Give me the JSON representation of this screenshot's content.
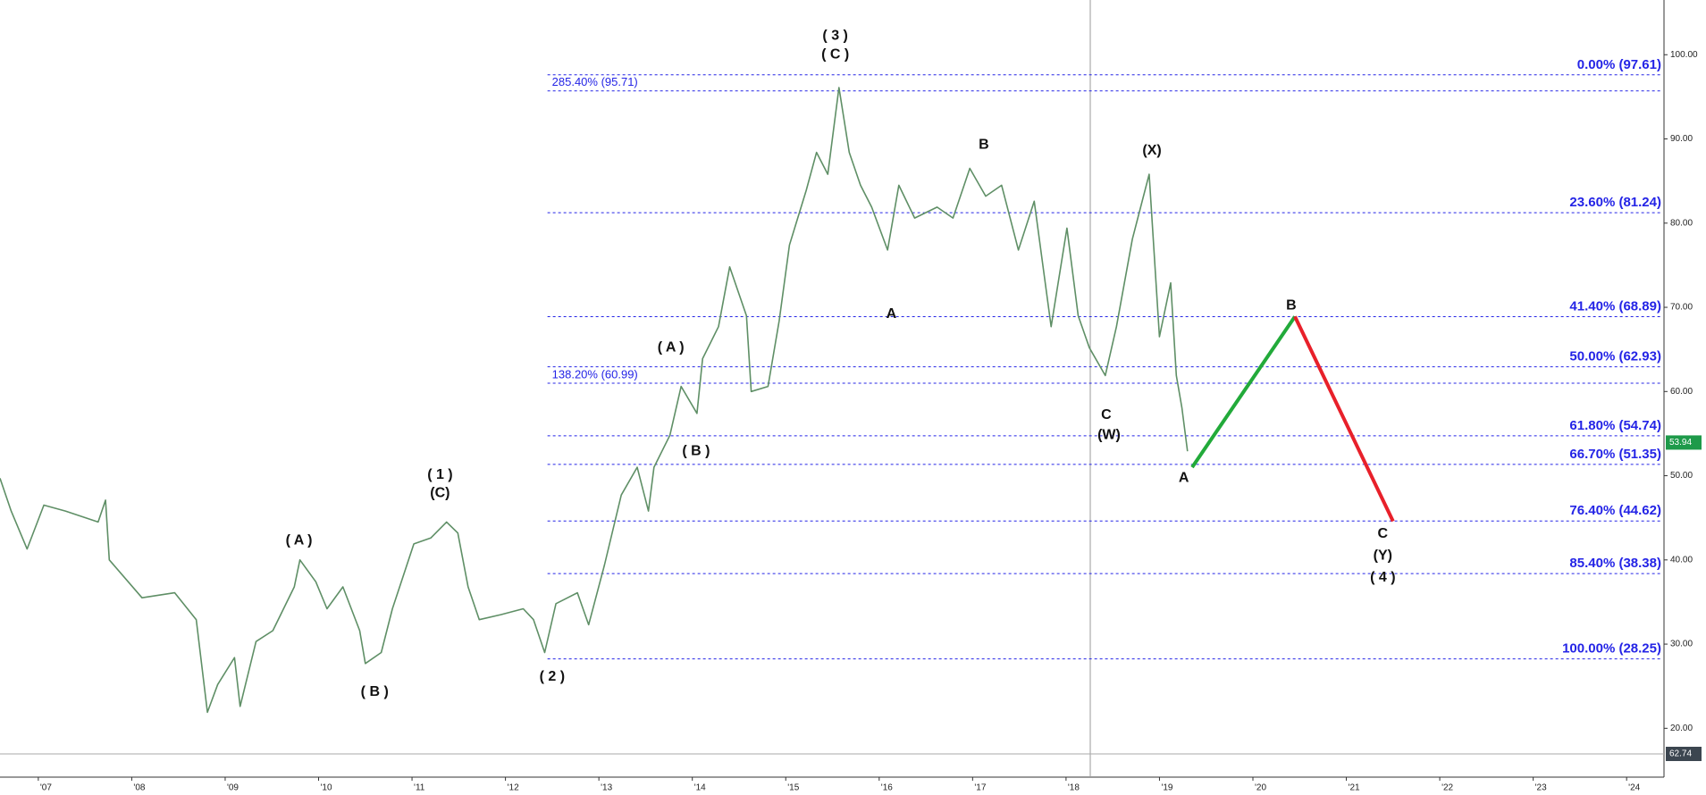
{
  "chart_data": {
    "type": "line",
    "xlim": [
      2006.59,
      2024.4
    ],
    "ylim": [
      14.2,
      106.5
    ],
    "xticks": [
      {
        "value": 2007,
        "label": "'07"
      },
      {
        "value": 2008,
        "label": "'08"
      },
      {
        "value": 2009,
        "label": "'09"
      },
      {
        "value": 2010,
        "label": "'10"
      },
      {
        "value": 2011,
        "label": "'11"
      },
      {
        "value": 2012,
        "label": "'12"
      },
      {
        "value": 2013,
        "label": "'13"
      },
      {
        "value": 2014,
        "label": "'14"
      },
      {
        "value": 2015,
        "label": "'15"
      },
      {
        "value": 2016,
        "label": "'16"
      },
      {
        "value": 2017,
        "label": "'17"
      },
      {
        "value": 2018,
        "label": "'18"
      },
      {
        "value": 2019,
        "label": "'19"
      },
      {
        "value": 2020,
        "label": "'20"
      },
      {
        "value": 2021,
        "label": "'21"
      },
      {
        "value": 2022,
        "label": "'22"
      },
      {
        "value": 2023,
        "label": "'23"
      },
      {
        "value": 2024,
        "label": "'24"
      }
    ],
    "yticks": [
      {
        "value": 20,
        "label": "20.00"
      },
      {
        "value": 30,
        "label": "30.00"
      },
      {
        "value": 40,
        "label": "40.00"
      },
      {
        "value": 50,
        "label": "50.00"
      },
      {
        "value": 60,
        "label": "60.00"
      },
      {
        "value": 70,
        "label": "70.00"
      },
      {
        "value": 80,
        "label": "80.00"
      },
      {
        "value": 90,
        "label": "90.00"
      },
      {
        "value": 100,
        "label": "100.00"
      }
    ],
    "series": [
      {
        "color": "#5f8f66",
        "x": [
          2006.59,
          2006.71,
          2006.88,
          2007.06,
          2007.29,
          2007.64,
          2007.72,
          2007.76,
          2008.11,
          2008.46,
          2008.69,
          2008.81,
          2008.92,
          2009.1,
          2009.16,
          2009.33,
          2009.51,
          2009.74,
          2009.8,
          2009.97,
          2010.09,
          2010.26,
          2010.44,
          2010.5,
          2010.67,
          2010.79,
          2011.02,
          2011.2,
          2011.37,
          2011.49,
          2011.6,
          2011.72,
          2011.95,
          2012.19,
          2012.3,
          2012.42,
          2012.54,
          2012.77,
          2012.89,
          2013.06,
          2013.24,
          2013.41,
          2013.53,
          2013.59,
          2013.76,
          2013.88,
          2014.05,
          2014.11,
          2014.28,
          2014.4,
          2014.58,
          2014.63,
          2014.81,
          2014.93,
          2015.04,
          2015.22,
          2015.33,
          2015.45,
          2015.51,
          2015.57,
          2015.68,
          2015.8,
          2015.92,
          2016.09,
          2016.21,
          2016.38,
          2016.62,
          2016.79,
          2016.97,
          2017.14,
          2017.31,
          2017.49,
          2017.66,
          2017.84,
          2018.01,
          2018.13,
          2018.25,
          2018.42,
          2018.54,
          2018.71,
          2018.89,
          2019.0,
          2019.12,
          2019.18,
          2019.24,
          2019.3
        ],
        "values": [
          49.7,
          45.8,
          41.3,
          46.5,
          45.8,
          44.5,
          47.1,
          40.0,
          35.5,
          36.1,
          32.9,
          21.9,
          25.2,
          28.4,
          22.6,
          30.3,
          31.6,
          36.8,
          40.0,
          37.4,
          34.2,
          36.8,
          31.6,
          27.7,
          29.0,
          34.2,
          41.9,
          42.6,
          44.5,
          43.2,
          36.8,
          32.9,
          33.5,
          34.2,
          32.9,
          29.0,
          34.8,
          36.1,
          32.3,
          39.4,
          47.7,
          51.0,
          45.8,
          51.0,
          54.8,
          60.6,
          57.4,
          63.9,
          67.7,
          74.8,
          69.0,
          60.0,
          60.6,
          68.4,
          77.4,
          83.9,
          88.4,
          85.8,
          91.0,
          96.1,
          88.4,
          84.5,
          81.9,
          76.8,
          84.5,
          80.6,
          81.9,
          80.6,
          86.5,
          83.2,
          84.5,
          76.8,
          82.6,
          67.7,
          79.4,
          69.0,
          65.2,
          61.9,
          67.7,
          78.1,
          85.8,
          66.5,
          72.9,
          61.9,
          58.1,
          52.9
        ]
      }
    ],
    "projection": [
      {
        "color": "#22aa3a",
        "x": [
          2019.35,
          2020.45
        ],
        "values": [
          51.0,
          68.9
        ]
      },
      {
        "color": "#e8202a",
        "x": [
          2020.45,
          2021.5
        ],
        "values": [
          68.9,
          44.6
        ]
      }
    ],
    "fib_start": 2012.45,
    "fib_color": "#2424e6",
    "fib_levels": [
      {
        "label": "0.00% (97.61)",
        "value": 97.61
      },
      {
        "label": "23.60% (81.24)",
        "value": 81.24
      },
      {
        "label": "41.40% (68.89)",
        "value": 68.89
      },
      {
        "label": "50.00% (62.93)",
        "value": 62.93
      },
      {
        "label": "61.80% (54.74)",
        "value": 54.74
      },
      {
        "label": "66.70% (51.35)",
        "value": 51.35
      },
      {
        "label": "76.40% (44.62)",
        "value": 44.62
      },
      {
        "label": "85.40% (38.38)",
        "value": 38.38
      },
      {
        "label": "100.00% (28.25)",
        "value": 28.25
      }
    ],
    "fib_extensions": [
      {
        "label": "285.40% (95.71)",
        "value": 95.71
      },
      {
        "label": "138.20% (60.99)",
        "value": 60.99
      }
    ],
    "annotations": [
      {
        "text": "( 3 )",
        "x": 2015.53,
        "y": 102.2
      },
      {
        "text": "( C )",
        "x": 2015.53,
        "y": 100.0
      },
      {
        "text": "( A )",
        "x": 2013.77,
        "y": 65.2
      },
      {
        "text": "( B )",
        "x": 2014.04,
        "y": 52.9
      },
      {
        "text": "A",
        "x": 2016.13,
        "y": 69.2
      },
      {
        "text": "B",
        "x": 2017.12,
        "y": 89.3
      },
      {
        "text": "(X)",
        "x": 2018.92,
        "y": 88.6
      },
      {
        "text": "C",
        "x": 2018.43,
        "y": 57.2
      },
      {
        "text": "(W)",
        "x": 2018.46,
        "y": 54.8
      },
      {
        "text": "A",
        "x": 2019.26,
        "y": 49.7
      },
      {
        "text": "B",
        "x": 2020.41,
        "y": 70.2
      },
      {
        "text": "C",
        "x": 2021.39,
        "y": 43.1
      },
      {
        "text": "(Y)",
        "x": 2021.39,
        "y": 40.5
      },
      {
        "text": "( 4 )",
        "x": 2021.39,
        "y": 37.9
      },
      {
        "text": "( 1 )",
        "x": 2011.3,
        "y": 50.1
      },
      {
        "text": "(C)",
        "x": 2011.3,
        "y": 47.9
      },
      {
        "text": "( A )",
        "x": 2009.79,
        "y": 42.3
      },
      {
        "text": "( B )",
        "x": 2010.6,
        "y": 24.3
      },
      {
        "text": "( 2 )",
        "x": 2012.5,
        "y": 26.1
      }
    ],
    "last_price": 53.94,
    "last_price_color": "#1e9a4a",
    "crosshair_label": "62.74"
  }
}
